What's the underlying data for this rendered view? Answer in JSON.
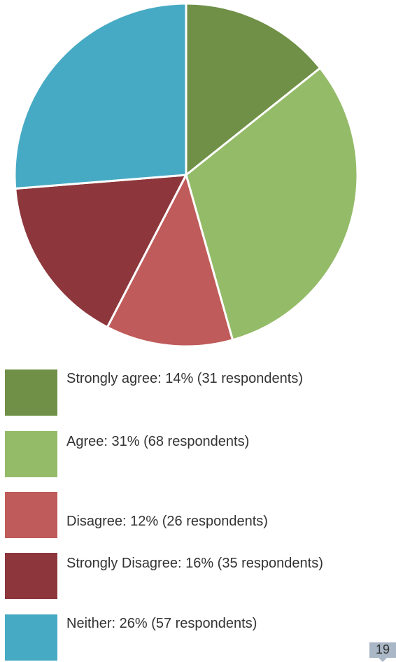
{
  "chart_data": {
    "type": "pie",
    "title": "",
    "slices": [
      {
        "label": "Strongly agree",
        "percent": 14,
        "respondents": 31,
        "color": "#6f9046",
        "legend_text": "Strongly agree: 14% (31 respondents)"
      },
      {
        "label": "Agree",
        "percent": 31,
        "respondents": 68,
        "color": "#94bb68",
        "legend_text": "Agree: 31% (68 respondents)"
      },
      {
        "label": "Disagree",
        "percent": 12,
        "respondents": 26,
        "color": "#bf5b5a",
        "legend_text": "Disagree: 12% (26 respondents)"
      },
      {
        "label": "Strongly Disagree",
        "percent": 16,
        "respondents": 35,
        "color": "#8d373c",
        "legend_text": "Strongly Disagree: 16% (35 respondents)"
      },
      {
        "label": "Neither",
        "percent": 26,
        "respondents": 57,
        "color": "#47aac4",
        "legend_text": "Neither: 26% (57 respondents)"
      }
    ],
    "legend_position": "bottom"
  },
  "page": {
    "number": "19"
  }
}
